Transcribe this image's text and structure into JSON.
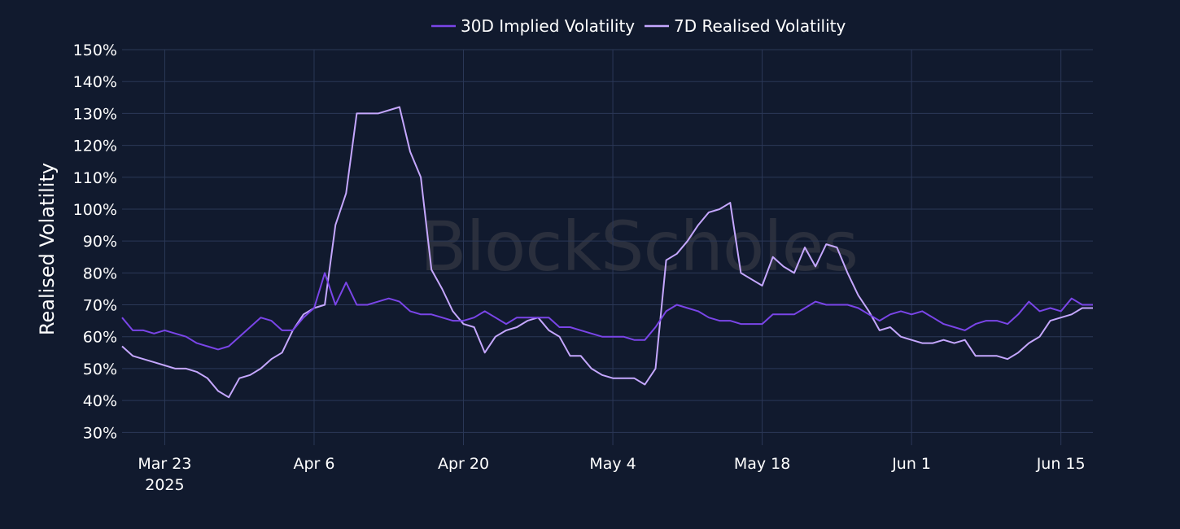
{
  "colors": {
    "background": "#111a2e",
    "grid": "#2b3857",
    "text": "#ffffff",
    "implied": "#7a45e8",
    "realised": "#c5a7ff",
    "watermark": "#2a2f3d"
  },
  "watermark": "BlockScholes",
  "chart_data": {
    "type": "line",
    "ylabel": "Realised Volatility",
    "xlabel": "",
    "y_unit": "%",
    "ylim": [
      26,
      150
    ],
    "y_ticks": [
      30,
      40,
      50,
      60,
      70,
      80,
      90,
      100,
      110,
      120,
      130,
      140,
      150
    ],
    "xlim": [
      "2025-03-19",
      "2025-06-18"
    ],
    "x_ticks": [
      {
        "date": "2025-03-23",
        "label": "Mar 23",
        "sublabel": "2025"
      },
      {
        "date": "2025-04-06",
        "label": "Apr 6",
        "sublabel": ""
      },
      {
        "date": "2025-04-20",
        "label": "Apr 20",
        "sublabel": ""
      },
      {
        "date": "2025-05-04",
        "label": "May 4",
        "sublabel": ""
      },
      {
        "date": "2025-05-18",
        "label": "May 18",
        "sublabel": ""
      },
      {
        "date": "2025-06-01",
        "label": "Jun 1",
        "sublabel": ""
      },
      {
        "date": "2025-06-15",
        "label": "Jun 15",
        "sublabel": ""
      }
    ],
    "grid": true,
    "legend_position": "top-center",
    "series": [
      {
        "name": "30D Implied Volatility",
        "color": "#7a45e8",
        "points": [
          [
            "2025-03-19",
            66
          ],
          [
            "2025-03-20",
            62
          ],
          [
            "2025-03-21",
            62
          ],
          [
            "2025-03-22",
            61
          ],
          [
            "2025-03-23",
            62
          ],
          [
            "2025-03-24",
            61
          ],
          [
            "2025-03-25",
            60
          ],
          [
            "2025-03-26",
            58
          ],
          [
            "2025-03-27",
            57
          ],
          [
            "2025-03-28",
            56
          ],
          [
            "2025-03-29",
            57
          ],
          [
            "2025-03-30",
            60
          ],
          [
            "2025-03-31",
            63
          ],
          [
            "2025-04-01",
            66
          ],
          [
            "2025-04-02",
            65
          ],
          [
            "2025-04-03",
            62
          ],
          [
            "2025-04-04",
            62
          ],
          [
            "2025-04-05",
            66
          ],
          [
            "2025-04-06",
            69
          ],
          [
            "2025-04-07",
            80
          ],
          [
            "2025-04-08",
            70
          ],
          [
            "2025-04-09",
            77
          ],
          [
            "2025-04-10",
            70
          ],
          [
            "2025-04-11",
            70
          ],
          [
            "2025-04-12",
            71
          ],
          [
            "2025-04-13",
            72
          ],
          [
            "2025-04-14",
            71
          ],
          [
            "2025-04-15",
            68
          ],
          [
            "2025-04-16",
            67
          ],
          [
            "2025-04-17",
            67
          ],
          [
            "2025-04-18",
            66
          ],
          [
            "2025-04-19",
            65
          ],
          [
            "2025-04-20",
            65
          ],
          [
            "2025-04-21",
            66
          ],
          [
            "2025-04-22",
            68
          ],
          [
            "2025-04-23",
            66
          ],
          [
            "2025-04-24",
            64
          ],
          [
            "2025-04-25",
            66
          ],
          [
            "2025-04-26",
            66
          ],
          [
            "2025-04-27",
            66
          ],
          [
            "2025-04-28",
            66
          ],
          [
            "2025-04-29",
            63
          ],
          [
            "2025-04-30",
            63
          ],
          [
            "2025-05-01",
            62
          ],
          [
            "2025-05-02",
            61
          ],
          [
            "2025-05-03",
            60
          ],
          [
            "2025-05-04",
            60
          ],
          [
            "2025-05-05",
            60
          ],
          [
            "2025-05-06",
            59
          ],
          [
            "2025-05-07",
            59
          ],
          [
            "2025-05-08",
            63
          ],
          [
            "2025-05-09",
            68
          ],
          [
            "2025-05-10",
            70
          ],
          [
            "2025-05-11",
            69
          ],
          [
            "2025-05-12",
            68
          ],
          [
            "2025-05-13",
            66
          ],
          [
            "2025-05-14",
            65
          ],
          [
            "2025-05-15",
            65
          ],
          [
            "2025-05-16",
            64
          ],
          [
            "2025-05-17",
            64
          ],
          [
            "2025-05-18",
            64
          ],
          [
            "2025-05-19",
            67
          ],
          [
            "2025-05-20",
            67
          ],
          [
            "2025-05-21",
            67
          ],
          [
            "2025-05-22",
            69
          ],
          [
            "2025-05-23",
            71
          ],
          [
            "2025-05-24",
            70
          ],
          [
            "2025-05-25",
            70
          ],
          [
            "2025-05-26",
            70
          ],
          [
            "2025-05-27",
            69
          ],
          [
            "2025-05-28",
            67
          ],
          [
            "2025-05-29",
            65
          ],
          [
            "2025-05-30",
            67
          ],
          [
            "2025-05-31",
            68
          ],
          [
            "2025-06-01",
            67
          ],
          [
            "2025-06-02",
            68
          ],
          [
            "2025-06-03",
            66
          ],
          [
            "2025-06-04",
            64
          ],
          [
            "2025-06-05",
            63
          ],
          [
            "2025-06-06",
            62
          ],
          [
            "2025-06-07",
            64
          ],
          [
            "2025-06-08",
            65
          ],
          [
            "2025-06-09",
            65
          ],
          [
            "2025-06-10",
            64
          ],
          [
            "2025-06-11",
            67
          ],
          [
            "2025-06-12",
            71
          ],
          [
            "2025-06-13",
            68
          ],
          [
            "2025-06-14",
            69
          ],
          [
            "2025-06-15",
            68
          ],
          [
            "2025-06-16",
            72
          ],
          [
            "2025-06-17",
            70
          ],
          [
            "2025-06-18",
            70
          ]
        ]
      },
      {
        "name": "7D Realised Volatility",
        "color": "#c5a7ff",
        "points": [
          [
            "2025-03-19",
            57
          ],
          [
            "2025-03-20",
            54
          ],
          [
            "2025-03-21",
            53
          ],
          [
            "2025-03-22",
            52
          ],
          [
            "2025-03-23",
            51
          ],
          [
            "2025-03-24",
            50
          ],
          [
            "2025-03-25",
            50
          ],
          [
            "2025-03-26",
            49
          ],
          [
            "2025-03-27",
            47
          ],
          [
            "2025-03-28",
            43
          ],
          [
            "2025-03-29",
            41
          ],
          [
            "2025-03-30",
            47
          ],
          [
            "2025-03-31",
            48
          ],
          [
            "2025-04-01",
            50
          ],
          [
            "2025-04-02",
            53
          ],
          [
            "2025-04-03",
            55
          ],
          [
            "2025-04-04",
            62
          ],
          [
            "2025-04-05",
            67
          ],
          [
            "2025-04-06",
            69
          ],
          [
            "2025-04-07",
            70
          ],
          [
            "2025-04-08",
            95
          ],
          [
            "2025-04-09",
            105
          ],
          [
            "2025-04-10",
            130
          ],
          [
            "2025-04-11",
            130
          ],
          [
            "2025-04-12",
            130
          ],
          [
            "2025-04-13",
            131
          ],
          [
            "2025-04-14",
            132
          ],
          [
            "2025-04-15",
            118
          ],
          [
            "2025-04-16",
            110
          ],
          [
            "2025-04-17",
            81
          ],
          [
            "2025-04-18",
            75
          ],
          [
            "2025-04-19",
            68
          ],
          [
            "2025-04-20",
            64
          ],
          [
            "2025-04-21",
            63
          ],
          [
            "2025-04-22",
            55
          ],
          [
            "2025-04-23",
            60
          ],
          [
            "2025-04-24",
            62
          ],
          [
            "2025-04-25",
            63
          ],
          [
            "2025-04-26",
            65
          ],
          [
            "2025-04-27",
            66
          ],
          [
            "2025-04-28",
            62
          ],
          [
            "2025-04-29",
            60
          ],
          [
            "2025-04-30",
            54
          ],
          [
            "2025-05-01",
            54
          ],
          [
            "2025-05-02",
            50
          ],
          [
            "2025-05-03",
            48
          ],
          [
            "2025-05-04",
            47
          ],
          [
            "2025-05-05",
            47
          ],
          [
            "2025-05-06",
            47
          ],
          [
            "2025-05-07",
            45
          ],
          [
            "2025-05-08",
            50
          ],
          [
            "2025-05-09",
            84
          ],
          [
            "2025-05-10",
            86
          ],
          [
            "2025-05-11",
            90
          ],
          [
            "2025-05-12",
            95
          ],
          [
            "2025-05-13",
            99
          ],
          [
            "2025-05-14",
            100
          ],
          [
            "2025-05-15",
            102
          ],
          [
            "2025-05-16",
            80
          ],
          [
            "2025-05-17",
            78
          ],
          [
            "2025-05-18",
            76
          ],
          [
            "2025-05-19",
            85
          ],
          [
            "2025-05-20",
            82
          ],
          [
            "2025-05-21",
            80
          ],
          [
            "2025-05-22",
            88
          ],
          [
            "2025-05-23",
            82
          ],
          [
            "2025-05-24",
            89
          ],
          [
            "2025-05-25",
            88
          ],
          [
            "2025-05-26",
            80
          ],
          [
            "2025-05-27",
            73
          ],
          [
            "2025-05-28",
            68
          ],
          [
            "2025-05-29",
            62
          ],
          [
            "2025-05-30",
            63
          ],
          [
            "2025-05-31",
            60
          ],
          [
            "2025-06-01",
            59
          ],
          [
            "2025-06-02",
            58
          ],
          [
            "2025-06-03",
            58
          ],
          [
            "2025-06-04",
            59
          ],
          [
            "2025-06-05",
            58
          ],
          [
            "2025-06-06",
            59
          ],
          [
            "2025-06-07",
            54
          ],
          [
            "2025-06-08",
            54
          ],
          [
            "2025-06-09",
            54
          ],
          [
            "2025-06-10",
            53
          ],
          [
            "2025-06-11",
            55
          ],
          [
            "2025-06-12",
            58
          ],
          [
            "2025-06-13",
            60
          ],
          [
            "2025-06-14",
            65
          ],
          [
            "2025-06-15",
            66
          ],
          [
            "2025-06-16",
            67
          ],
          [
            "2025-06-17",
            69
          ],
          [
            "2025-06-18",
            69
          ]
        ]
      }
    ]
  }
}
